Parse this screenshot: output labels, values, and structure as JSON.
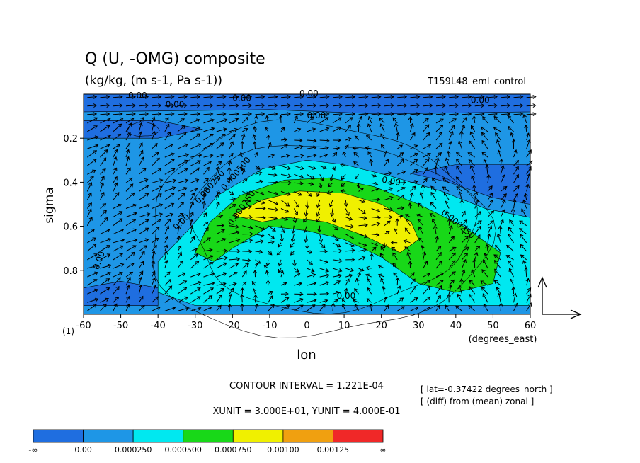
{
  "chart_data": {
    "type": "contour",
    "title": "Q (U, -OMG) composite",
    "subtitle": "(kg/kg, (m s-1, Pa s-1))",
    "run_name": "T159L48_eml_control",
    "xlabel": "lon",
    "x_units": "(degrees_east)",
    "ylabel": "sigma",
    "x_ticks": [
      "-60",
      "-50",
      "-40",
      "-30",
      "-20",
      "-10",
      "0",
      "10",
      "20",
      "30",
      "40",
      "50",
      "60"
    ],
    "y_ticks": [
      "0.2",
      "0.4",
      "0.6",
      "0.8"
    ],
    "y_corner_label": "(1)",
    "xlim": [
      -60,
      60
    ],
    "ylim": [
      0,
      1
    ],
    "y_reversed": true,
    "contour_labels": [
      "0.00",
      "0.00",
      "0.00",
      "0.00",
      "0.00",
      "0.00",
      "0.00",
      "0.00",
      "0.00",
      "0.00",
      "0.000250",
      "0.000250",
      "0.000500",
      "0.000750"
    ],
    "contour_interval_text": "CONTOUR INTERVAL = 1.221E-04",
    "unit_vector_text": "XUNIT = 3.000E+01, YUNIT = 4.000E-01",
    "notes": [
      "[ lat=-0.37422 degrees_north ]",
      "[ (diff) from (mean) zonal ]"
    ],
    "colorbar": {
      "boundaries": [
        "-∞",
        "0.00",
        "0.000250",
        "0.000500",
        "0.000750",
        "0.00100",
        "0.00125",
        "∞"
      ],
      "colors": [
        "#1f6ee0",
        "#1e96e6",
        "#00e8f0",
        "#18d818",
        "#f0f000",
        "#f0a010",
        "#f02828"
      ]
    }
  }
}
